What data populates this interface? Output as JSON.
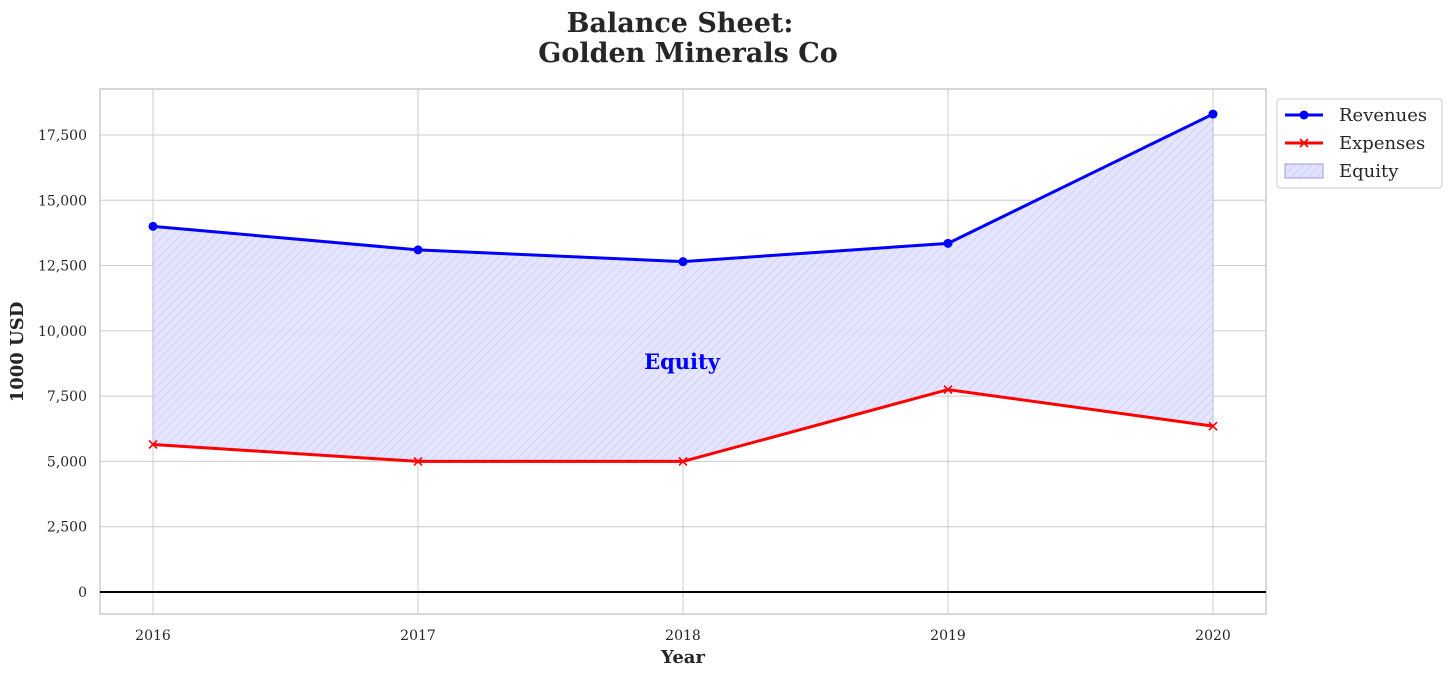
{
  "chart_data": {
    "type": "line",
    "title_line1": "Balance Sheet:",
    "title_line2": "Golden Minerals Co",
    "xlabel": "Year",
    "ylabel": "1000 USD",
    "x": [
      2016,
      2017,
      2018,
      2019,
      2020
    ],
    "x_tick_labels": [
      "2016",
      "2017",
      "2018",
      "2019",
      "2020"
    ],
    "xlim": [
      2015.8,
      2020.2
    ],
    "ylim": [
      -842,
      19260
    ],
    "y_ticks": [
      0,
      2500,
      5000,
      7500,
      10000,
      12500,
      15000,
      17500
    ],
    "y_tick_labels": [
      "0",
      "2,500",
      "5,000",
      "7,500",
      "10,000",
      "12,500",
      "15,000",
      "17,500"
    ],
    "grid": true,
    "series": [
      {
        "name": "Revenues",
        "values": [
          14000,
          13100,
          12650,
          13350,
          18300
        ],
        "color": "#0000ff",
        "marker": "circle"
      },
      {
        "name": "Expenses",
        "values": [
          5650,
          5000,
          5000,
          7750,
          6350
        ],
        "color": "#ff0000",
        "marker": "x"
      }
    ],
    "fill": {
      "name": "Equity",
      "between": [
        "Revenues",
        "Expenses"
      ],
      "color": "#0000ff"
    },
    "annotation": {
      "text": "Equity",
      "x": 2018,
      "y": 8800,
      "color": "#0000ff"
    },
    "legend": {
      "placement": "outside-top-right",
      "entries": [
        "Revenues",
        "Expenses",
        "Equity"
      ]
    }
  }
}
